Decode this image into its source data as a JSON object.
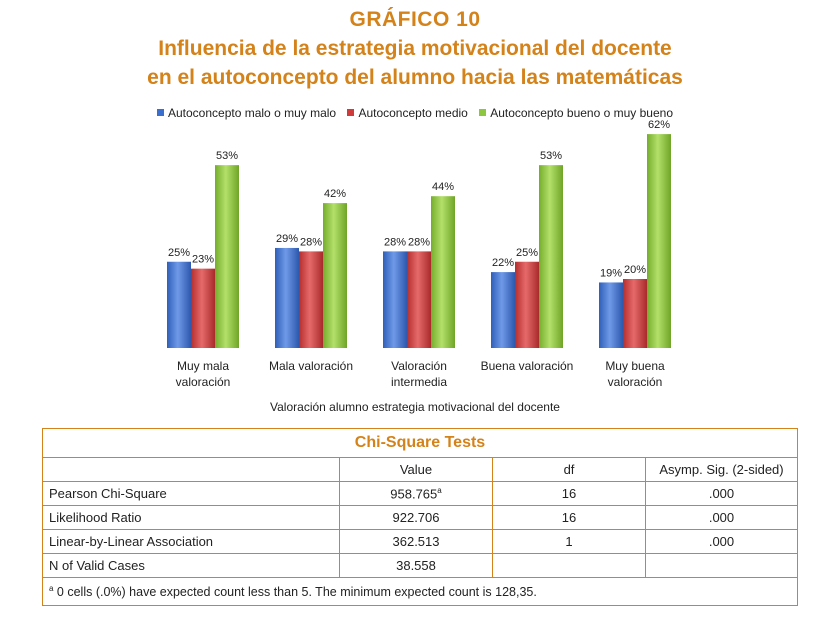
{
  "heading": {
    "line1": "GRÁFICO 10",
    "line2": "Influencia de la estrategia motivacional del docente",
    "line3": "en el autoconcepto del alumno hacia las matemáticas"
  },
  "chart_data": {
    "type": "bar",
    "categories": [
      [
        "Muy mala",
        "valoración"
      ],
      [
        "Mala valoración"
      ],
      [
        "Valoración",
        "intermedia"
      ],
      [
        "Buena valoración"
      ],
      [
        "Muy buena",
        "valoración"
      ]
    ],
    "series": [
      {
        "name": "Autoconcepto malo o muy malo",
        "color": "#3a6fcf",
        "values": [
          25,
          29,
          28,
          22,
          19
        ],
        "labels": [
          "25%",
          "29%",
          "28%",
          "22%",
          "19%"
        ]
      },
      {
        "name": "Autoconcepto medio",
        "color": "#cf3b3b",
        "values": [
          23,
          28,
          28,
          25,
          20
        ],
        "labels": [
          "23%",
          "28%",
          "28%",
          "25%",
          "20%"
        ]
      },
      {
        "name": "Autoconcepto bueno o muy bueno",
        "color": "#8dc63f",
        "values": [
          53,
          42,
          44,
          53,
          62
        ],
        "labels": [
          "53%",
          "42%",
          "44%",
          "53%",
          "62%"
        ]
      }
    ],
    "xlabel": "Valoración alumno estrategia motivacional del docente",
    "ylabel": "",
    "ylim": [
      0,
      70
    ],
    "legend": "top"
  },
  "table": {
    "caption": "Chi-Square Tests",
    "headers": [
      "",
      "Value",
      "df",
      "Asymp. Sig. (2-sided)"
    ],
    "rows": [
      {
        "label": "Pearson Chi-Square",
        "value": "958.765",
        "sup": "a",
        "df": "16",
        "sig": ".000"
      },
      {
        "label": "Likelihood Ratio",
        "value": "922.706",
        "sup": "",
        "df": "16",
        "sig": ".000"
      },
      {
        "label": "Linear-by-Linear Association",
        "value": "362.513",
        "sup": "",
        "df": "1",
        "sig": ".000"
      },
      {
        "label": "N of Valid Cases",
        "value": "38.558",
        "sup": "",
        "df": "",
        "sig": ""
      }
    ],
    "footnote_mark": "a",
    "footnote": " 0 cells (.0%) have expected count less than 5. The minimum expected count is 128,35."
  }
}
